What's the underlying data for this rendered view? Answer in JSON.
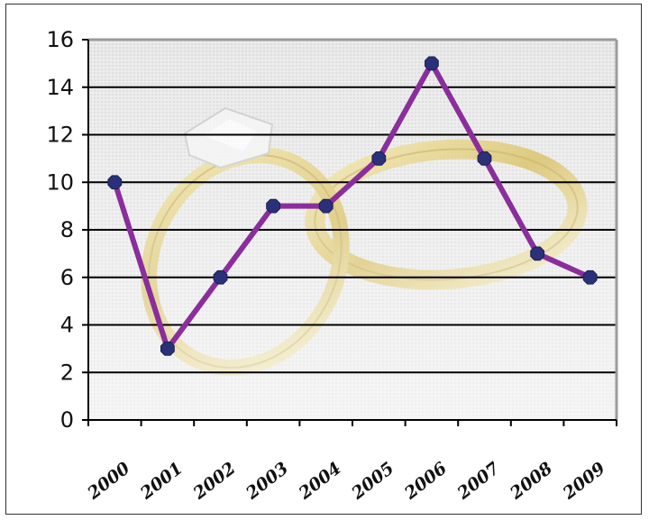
{
  "chart_data": {
    "type": "line",
    "categories": [
      "2000",
      "2001",
      "2002",
      "2003",
      "2004",
      "2005",
      "2006",
      "2007",
      "2008",
      "2009"
    ],
    "values": [
      10,
      3,
      6,
      9,
      9,
      11,
      15,
      11,
      7,
      6
    ],
    "ylim": [
      0,
      16
    ],
    "yticks": [
      "0",
      "2",
      "4",
      "6",
      "8",
      "10",
      "12",
      "14",
      "16"
    ],
    "grid": true,
    "line_color": "#8a2e9c",
    "marker_color": "#2a3178",
    "title": "",
    "xlabel": "",
    "ylabel": ""
  }
}
